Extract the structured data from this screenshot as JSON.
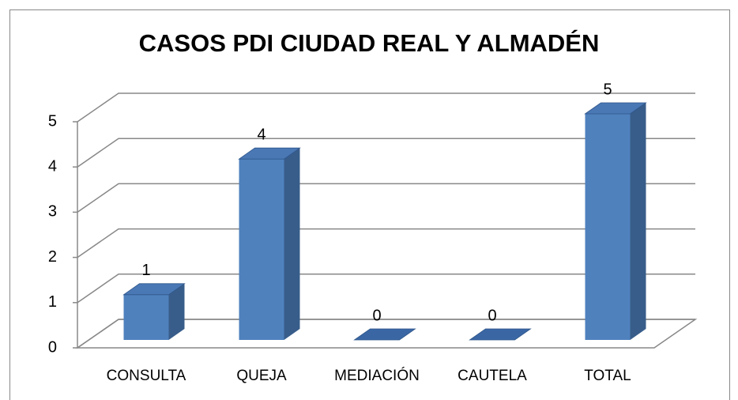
{
  "chart_data": {
    "type": "bar3d",
    "title": "CASOS PDI CIUDAD REAL Y ALMADÉN",
    "categories": [
      "CONSULTA",
      "QUEJA",
      "MEDIACIÓN",
      "CAUTELA",
      "TOTAL"
    ],
    "values": [
      1,
      4,
      0,
      0,
      5
    ],
    "color": "#4f81bd",
    "ylim": [
      0,
      5
    ],
    "yticks": [
      0,
      1,
      2,
      3,
      4,
      5
    ],
    "grid": true
  }
}
